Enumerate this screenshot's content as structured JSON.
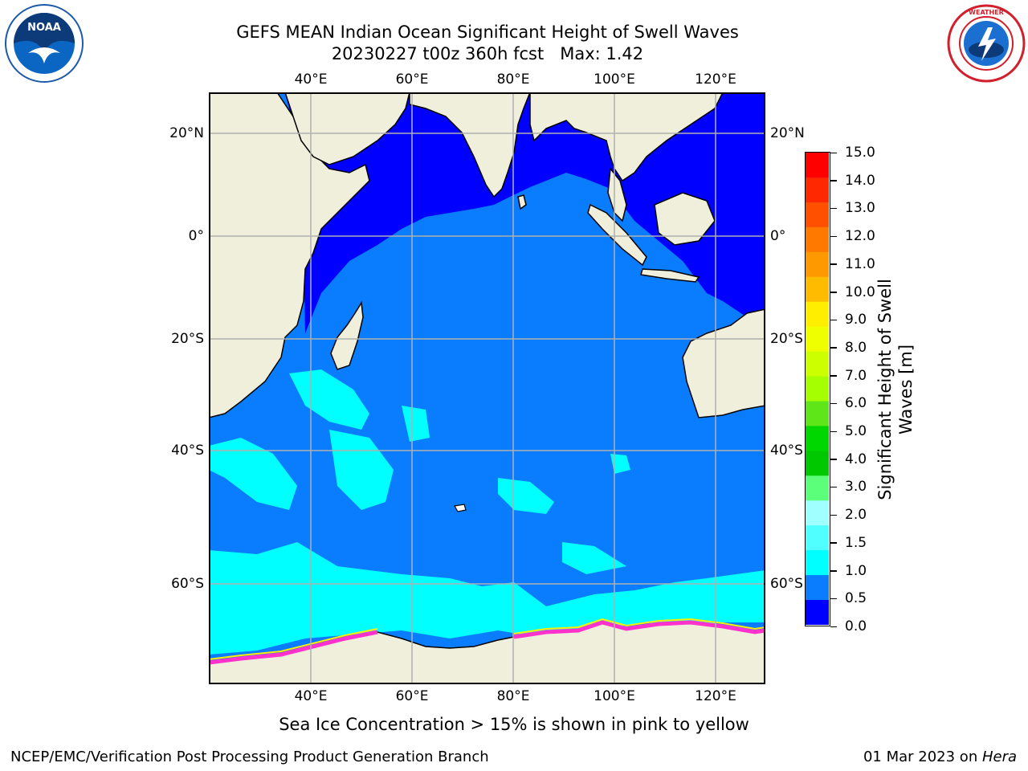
{
  "title": {
    "line1": "GEFS MEAN Indian Ocean Significant Height of Swell Waves",
    "line2": "20230227 t00z 360h fcst   Max: 1.42"
  },
  "logos": {
    "left": "noaa-logo",
    "right": "national-weather-service-logo"
  },
  "map": {
    "lon_ticks": [
      "40°E",
      "60°E",
      "80°E",
      "100°E",
      "120°E"
    ],
    "lat_ticks": [
      "20°N",
      "0°",
      "20°S",
      "40°S",
      "60°S"
    ],
    "colors": {
      "land": "#efefdc",
      "ocean_lowest": "#0000ff",
      "ocean_low": "#0a7dff",
      "ocean_mid": "#00ffff"
    }
  },
  "colorbar": {
    "title_line1": "Significant Height of Swell",
    "title_line2": "Waves [m]",
    "labels": [
      "15.0",
      "14.0",
      "13.0",
      "12.0",
      "11.0",
      "10.0",
      "9.0",
      "8.0",
      "7.0",
      "6.0",
      "5.0",
      "4.0",
      "3.0",
      "2.0",
      "1.5",
      "1.0",
      "0.5",
      "0.0"
    ],
    "colors": [
      "#ff0000",
      "#ff2800",
      "#ff5000",
      "#ff7800",
      "#ff9900",
      "#ffbb00",
      "#ffee00",
      "#f0ff00",
      "#ccff00",
      "#a6ff00",
      "#5fe619",
      "#00d700",
      "#00c800",
      "#5bff7a",
      "#a0ffff",
      "#50ffff",
      "#00ffff",
      "#0a7dff",
      "#0000ff"
    ]
  },
  "footer": {
    "note": "Sea Ice Concentration > 15% is shown in pink to yellow",
    "left": "NCEP/EMC/Verification Post Processing Product Generation Branch",
    "right_date": "01 Mar 2023 on ",
    "right_host": "Hera"
  }
}
